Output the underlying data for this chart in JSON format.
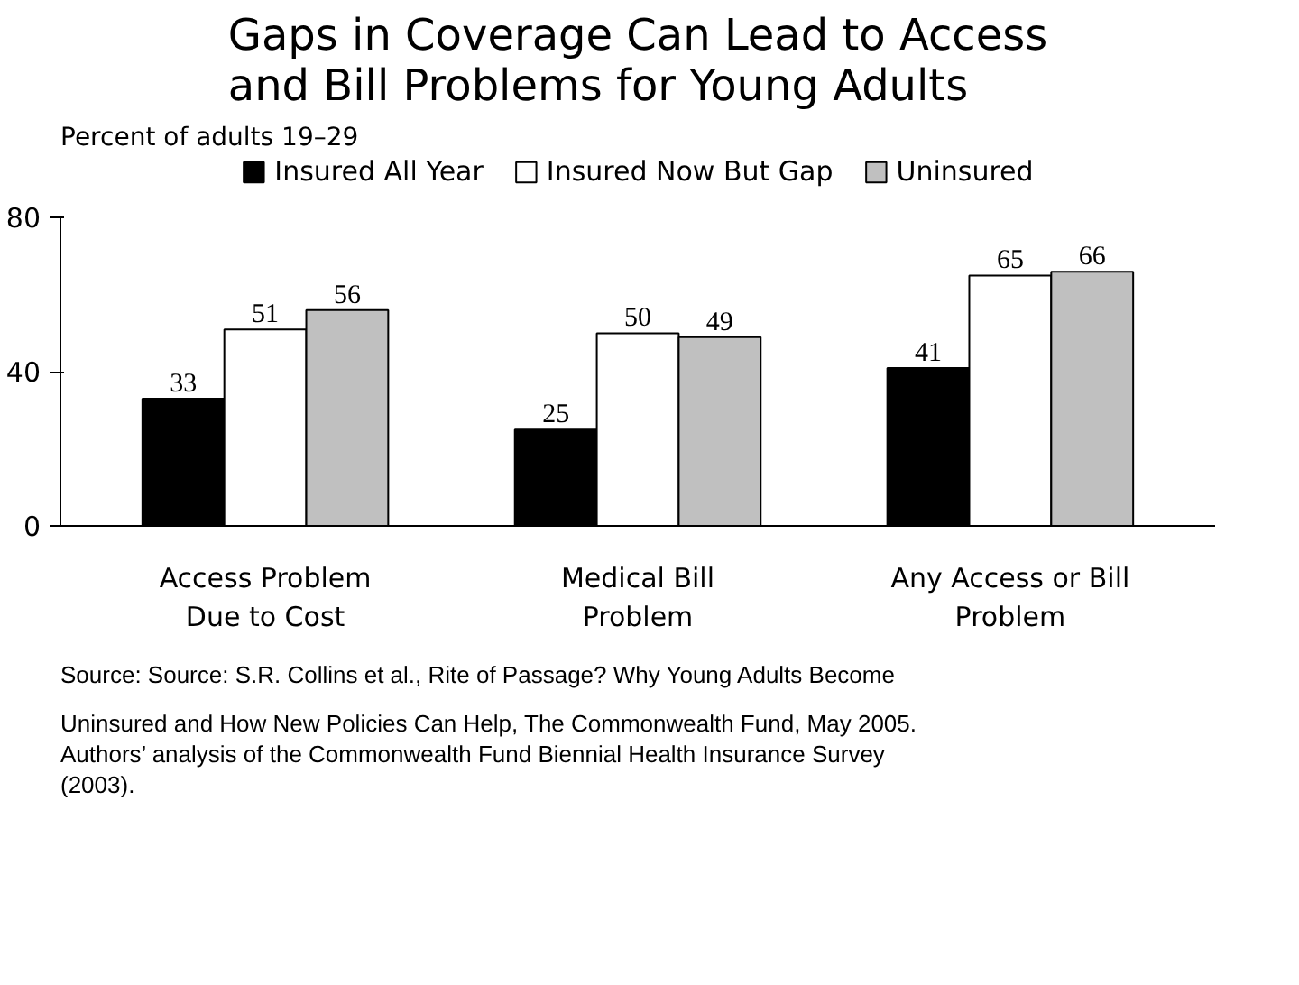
{
  "chart_data": {
    "type": "bar",
    "title": "Gaps in Coverage Can Lead to Access\nand Bill Problems for Young Adults",
    "ylabel": "Percent of adults 19–29",
    "categories": [
      "Access Problem\nDue to Cost",
      "Medical Bill\nProblem",
      "Any Access or Bill\nProblem"
    ],
    "series": [
      {
        "name": "Insured All Year",
        "color": "#000000",
        "values": [
          33,
          25,
          41
        ]
      },
      {
        "name": "Insured Now But Gap",
        "color": "#ffffff",
        "values": [
          51,
          50,
          65
        ]
      },
      {
        "name": "Uninsured",
        "color": "#c0c0c0",
        "values": [
          56,
          49,
          66
        ]
      }
    ],
    "ylim": [
      0,
      80
    ],
    "yticks": [
      0,
      40,
      80
    ],
    "grid": false,
    "legend": "top",
    "data_labels": true,
    "annotations": [
      "Source: Source: S.R. Collins et al., Rite of Passage? Why Young Adults Become Uninsured and How New Policies Can Help, The Commonwealth Fund, May 2005.",
      "Authors’ analysis of the Commonwealth Fund Biennial Health Insurance Survey (2003)."
    ]
  }
}
